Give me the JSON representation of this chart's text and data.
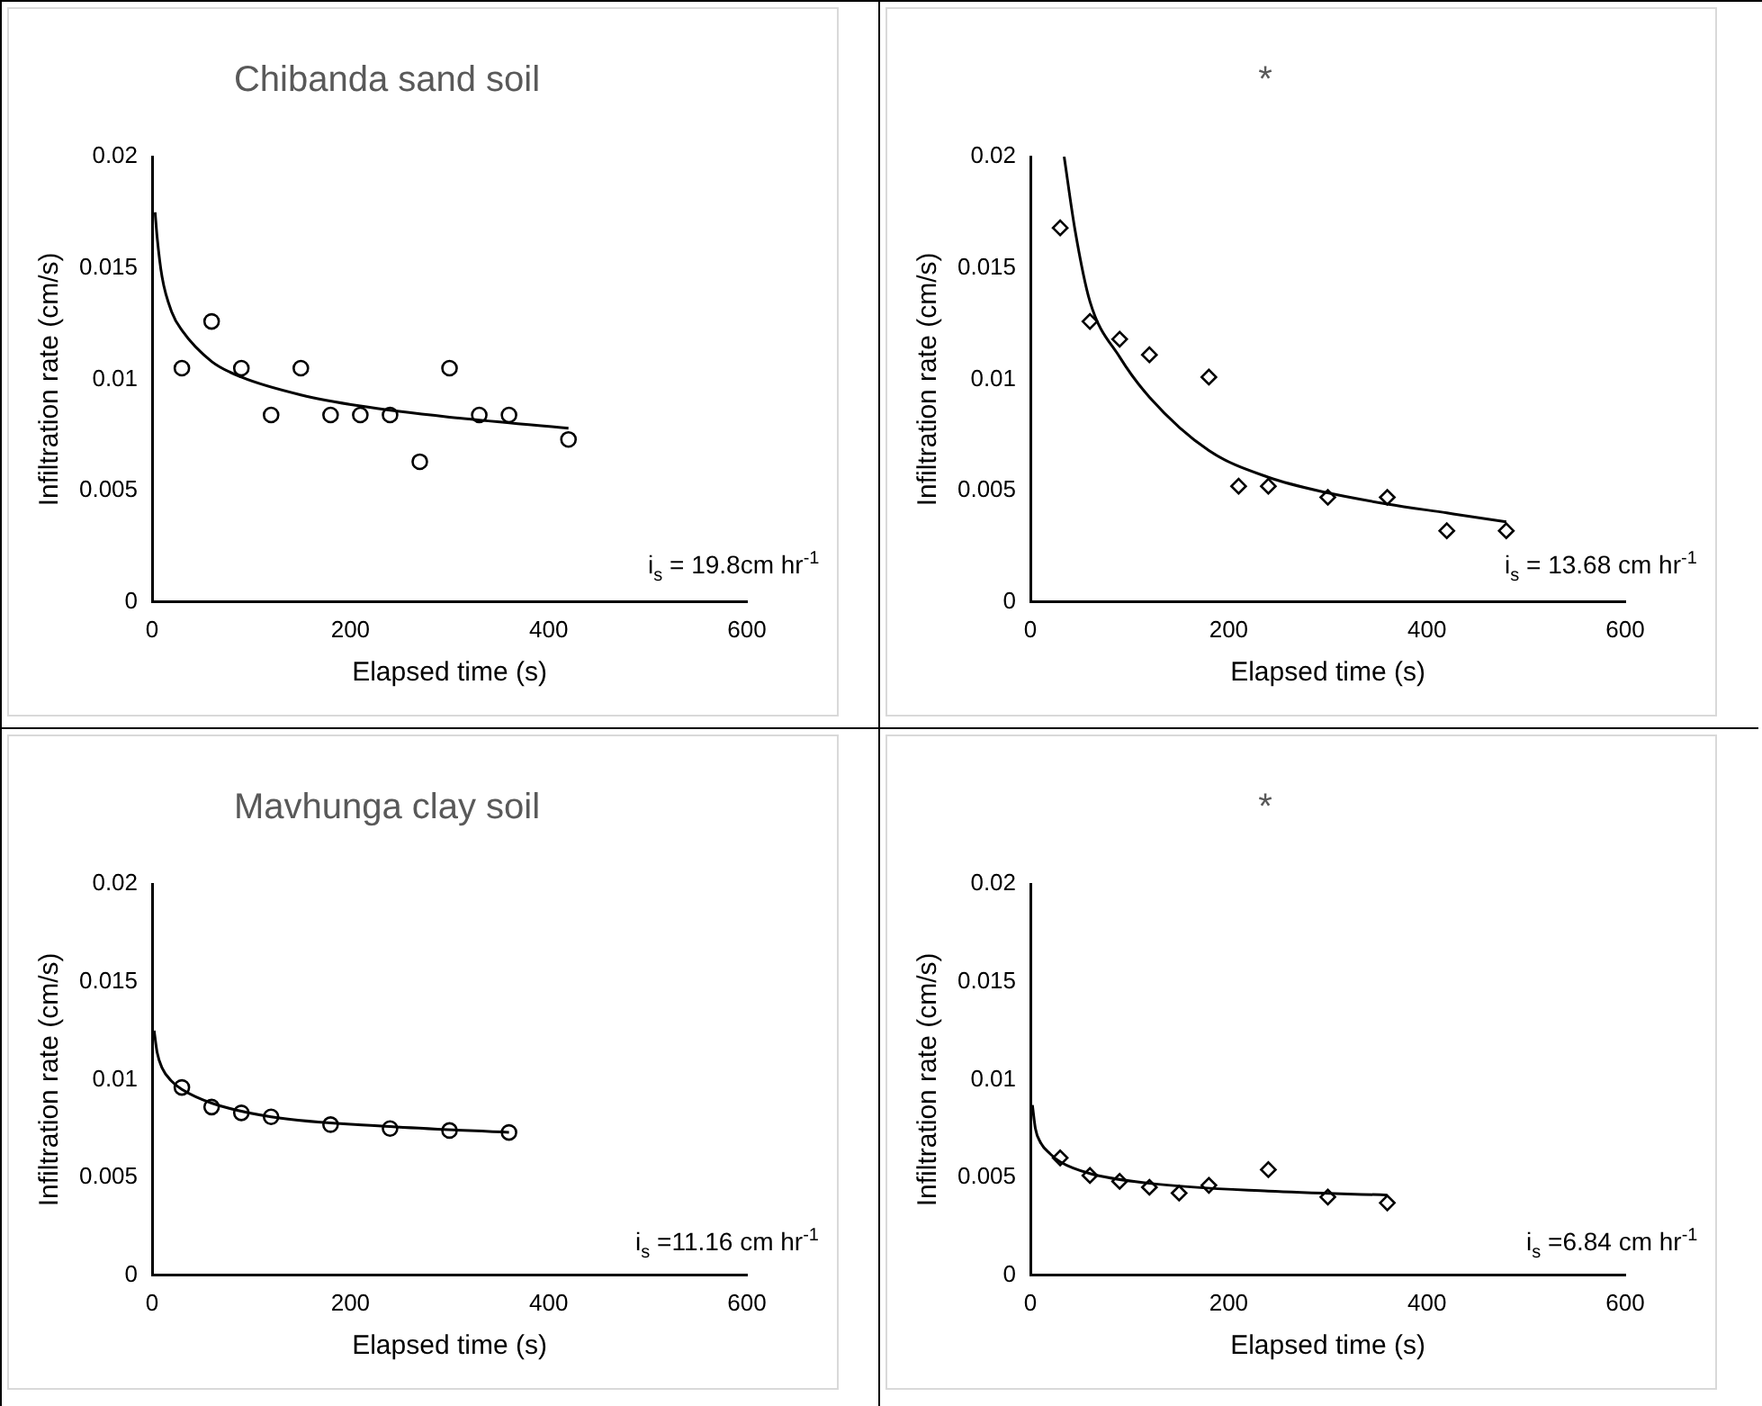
{
  "chart_data": [
    {
      "type": "scatter",
      "title": "Chibanda sand soil",
      "xlabel": "Elapsed time (s)",
      "ylabel": "Infiltration rate (cm/s)",
      "xlim": [
        0,
        600
      ],
      "xticks": [
        0,
        200,
        400,
        600
      ],
      "ylim": [
        0,
        0.02
      ],
      "yticks": [
        0,
        0.005,
        0.01,
        0.015,
        0.02
      ],
      "legend": false,
      "series": [
        {
          "marker": "circle",
          "color": "#000000",
          "x": [
            30,
            60,
            90,
            120,
            150,
            180,
            210,
            240,
            270,
            300,
            330,
            360,
            420
          ],
          "values": [
            0.0105,
            0.0126,
            0.0105,
            0.0084,
            0.0105,
            0.0084,
            0.0084,
            0.0084,
            0.0063,
            0.0105,
            0.0084,
            0.0084,
            0.0073
          ]
        },
        {
          "type": "line",
          "marker": "none",
          "color": "#000000",
          "x": [
            3,
            5,
            10,
            20,
            30,
            60,
            90,
            150,
            210,
            300,
            420
          ],
          "values": [
            0.0175,
            0.0164,
            0.0146,
            0.013,
            0.0122,
            0.0108,
            0.0101,
            0.0093,
            0.0088,
            0.0083,
            0.0078
          ]
        }
      ],
      "annotations": [
        "i$_{s}$ = 19.8cm hr$^{-1}$"
      ]
    },
    {
      "type": "scatter",
      "title": "*",
      "xlabel": "Elapsed time (s)",
      "ylabel": "Infiltration rate (cm/s)",
      "xlim": [
        0,
        600
      ],
      "xticks": [
        0,
        200,
        400,
        600
      ],
      "ylim": [
        0,
        0.02
      ],
      "yticks": [
        0,
        0.005,
        0.01,
        0.015,
        0.02
      ],
      "legend": false,
      "series": [
        {
          "marker": "diamond",
          "color": "#000000",
          "x": [
            30,
            60,
            90,
            120,
            180,
            210,
            240,
            300,
            360,
            420,
            480
          ],
          "values": [
            0.0168,
            0.0126,
            0.0118,
            0.0111,
            0.0101,
            0.0052,
            0.0052,
            0.0047,
            0.0047,
            0.0032,
            0.0032
          ]
        },
        {
          "type": "line",
          "marker": "none",
          "color": "#000000",
          "x": [
            34,
            45,
            60,
            90,
            120,
            180,
            240,
            300,
            360,
            420,
            480
          ],
          "values": [
            0.02,
            0.0167,
            0.0135,
            0.011,
            0.0092,
            0.0068,
            0.0056,
            0.0049,
            0.0044,
            0.004,
            0.0036
          ]
        }
      ],
      "annotations": [
        "i$_{s}$ = 13.68 cm hr$^{-1}$"
      ]
    },
    {
      "type": "scatter",
      "title": "Mavhunga clay soil",
      "xlabel": "Elapsed time (s)",
      "ylabel": "Infiltration rate (cm/s)",
      "xlim": [
        0,
        600
      ],
      "xticks": [
        0,
        200,
        400,
        600
      ],
      "ylim": [
        0,
        0.02
      ],
      "yticks": [
        0,
        0.005,
        0.01,
        0.015,
        0.02
      ],
      "legend": false,
      "series": [
        {
          "marker": "circle",
          "color": "#000000",
          "x": [
            30,
            60,
            90,
            120,
            180,
            240,
            300,
            360
          ],
          "values": [
            0.0096,
            0.0086,
            0.0083,
            0.0081,
            0.0077,
            0.0075,
            0.0074,
            0.0073
          ]
        },
        {
          "type": "line",
          "marker": "none",
          "color": "#000000",
          "x": [
            2,
            5,
            10,
            20,
            30,
            60,
            120,
            240,
            360
          ],
          "values": [
            0.0125,
            0.0114,
            0.0106,
            0.0099,
            0.0095,
            0.0088,
            0.0081,
            0.0076,
            0.0073
          ]
        }
      ],
      "annotations": [
        "i$_{s}$ =11.16 cm hr$^{-1}$"
      ]
    },
    {
      "type": "scatter",
      "title": "*",
      "xlabel": "Elapsed time (s)",
      "ylabel": "Infiltration rate (cm/s)",
      "xlim": [
        0,
        600
      ],
      "xticks": [
        0,
        200,
        400,
        600
      ],
      "ylim": [
        0,
        0.02
      ],
      "yticks": [
        0,
        0.005,
        0.01,
        0.015,
        0.02
      ],
      "legend": false,
      "series": [
        {
          "marker": "diamond",
          "color": "#000000",
          "x": [
            30,
            60,
            90,
            120,
            150,
            180,
            240,
            300,
            360
          ],
          "values": [
            0.006,
            0.0051,
            0.0048,
            0.0045,
            0.0042,
            0.0046,
            0.0054,
            0.004,
            0.0037
          ]
        },
        {
          "type": "line",
          "marker": "none",
          "color": "#000000",
          "x": [
            2,
            5,
            10,
            20,
            30,
            60,
            120,
            240,
            360
          ],
          "values": [
            0.0087,
            0.0075,
            0.0068,
            0.0062,
            0.0058,
            0.0052,
            0.0047,
            0.0043,
            0.0041
          ]
        }
      ],
      "annotations": [
        "i$_{s}$ =6.84 cm hr$^{-1}$"
      ]
    }
  ]
}
